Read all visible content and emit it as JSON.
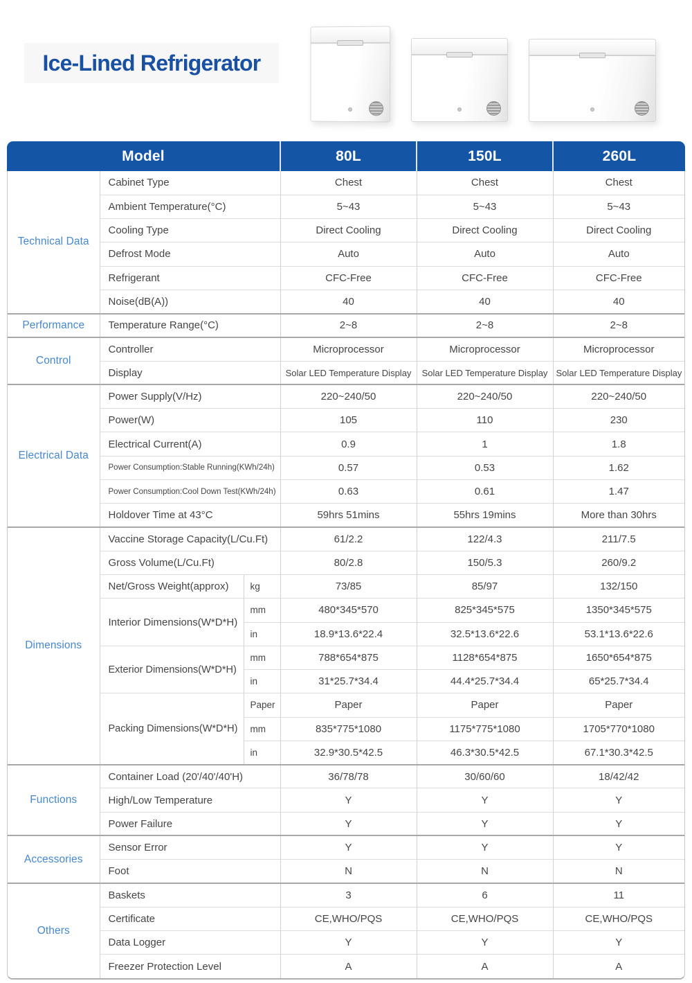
{
  "header": {
    "title": "Ice-Lined Refrigerator"
  },
  "products": [
    {
      "name": "chest-freezer-80l"
    },
    {
      "name": "chest-freezer-150l"
    },
    {
      "name": "chest-freezer-260l"
    }
  ],
  "table": {
    "model_label": "Model",
    "columns": [
      "80L",
      "150L",
      "260L"
    ],
    "groups": [
      {
        "category": "Technical Data",
        "rows": [
          {
            "label": "Cabinet Type",
            "values": [
              "Chest",
              "Chest",
              "Chest"
            ]
          },
          {
            "label": "Ambient Temperature(°C)",
            "values": [
              "5~43",
              "5~43",
              "5~43"
            ]
          },
          {
            "label": "Cooling Type",
            "values": [
              "Direct Cooling",
              "Direct Cooling",
              "Direct Cooling"
            ]
          },
          {
            "label": "Defrost Mode",
            "values": [
              "Auto",
              "Auto",
              "Auto"
            ]
          },
          {
            "label": "Refrigerant",
            "values": [
              "CFC-Free",
              "CFC-Free",
              "CFC-Free"
            ]
          },
          {
            "label": "Noise(dB(A))",
            "values": [
              "40",
              "40",
              "40"
            ]
          }
        ]
      },
      {
        "category": "Performance",
        "rows": [
          {
            "label": "Temperature Range(°C)",
            "values": [
              "2~8",
              "2~8",
              "2~8"
            ]
          }
        ]
      },
      {
        "category": "Control",
        "rows": [
          {
            "label": "Controller",
            "values": [
              "Microprocessor",
              "Microprocessor",
              "Microprocessor"
            ]
          },
          {
            "label": "Display",
            "values": [
              "Solar LED Temperature Display",
              "Solar LED Temperature Display",
              "Solar LED Temperature Display"
            ]
          }
        ]
      },
      {
        "category": "Electrical Data",
        "rows": [
          {
            "label": "Power Supply(V/Hz)",
            "values": [
              "220~240/50",
              "220~240/50",
              "220~240/50"
            ]
          },
          {
            "label": "Power(W)",
            "values": [
              "105",
              "110",
              "230"
            ]
          },
          {
            "label": "Electrical Current(A)",
            "values": [
              "0.9",
              "1",
              "1.8"
            ]
          },
          {
            "label": "Power Consumption:Stable Running(KWh/24h)",
            "values": [
              "0.57",
              "0.53",
              "1.62"
            ]
          },
          {
            "label": "Power Consumption:Cool Down Test(KWh/24h)",
            "values": [
              "0.63",
              "0.61",
              "1.47"
            ]
          },
          {
            "label": "Holdover Time at 43°C",
            "values": [
              "59hrs 51mins",
              "55hrs 19mins",
              "More than 30hrs"
            ]
          }
        ]
      },
      {
        "category": "Dimensions",
        "rows": [
          {
            "label": "Vaccine Storage Capacity(L/Cu.Ft)",
            "values": [
              "61/2.2",
              "122/4.3",
              "211/7.5"
            ]
          },
          {
            "label": "Gross Volume(L/Cu.Ft)",
            "values": [
              "80/2.8",
              "150/5.3",
              "260/9.2"
            ]
          },
          {
            "label": "Net/Gross Weight(approx)",
            "unit": "kg",
            "values": [
              "73/85",
              "85/97",
              "132/150"
            ]
          },
          {
            "label": "Interior Dimensions(W*D*H)",
            "subrows": [
              {
                "unit": "mm",
                "values": [
                  "480*345*570",
                  "825*345*575",
                  "1350*345*575"
                ]
              },
              {
                "unit": "in",
                "values": [
                  "18.9*13.6*22.4",
                  "32.5*13.6*22.6",
                  "53.1*13.6*22.6"
                ]
              }
            ]
          },
          {
            "label": "Exterior Dimensions(W*D*H)",
            "subrows": [
              {
                "unit": "mm",
                "values": [
                  "788*654*875",
                  "1128*654*875",
                  "1650*654*875"
                ]
              },
              {
                "unit": "in",
                "values": [
                  "31*25.7*34.4",
                  "44.4*25.7*34.4",
                  "65*25.7*34.4"
                ]
              }
            ]
          },
          {
            "label": "Packing Dimensions(W*D*H)",
            "subrows": [
              {
                "unit": "Paper",
                "values": [
                  "Paper",
                  "Paper",
                  "Paper"
                ]
              },
              {
                "unit": "mm",
                "values": [
                  "835*775*1080",
                  "1175*775*1080",
                  "1705*770*1080"
                ]
              },
              {
                "unit": "in",
                "values": [
                  "32.9*30.5*42.5",
                  "46.3*30.5*42.5",
                  "67.1*30.3*42.5"
                ]
              }
            ]
          }
        ]
      },
      {
        "category": "Functions",
        "rows": [
          {
            "label": "Container Load (20'/40'/40'H)",
            "values": [
              "36/78/78",
              "30/60/60",
              "18/42/42"
            ]
          },
          {
            "label": "High/Low Temperature",
            "values": [
              "Y",
              "Y",
              "Y"
            ]
          },
          {
            "label": "Power Failure",
            "values": [
              "Y",
              "Y",
              "Y"
            ]
          }
        ]
      },
      {
        "category": "Accessories",
        "rows": [
          {
            "label": "Sensor Error",
            "values": [
              "Y",
              "Y",
              "Y"
            ]
          },
          {
            "label": "Foot",
            "values": [
              "N",
              "N",
              "N"
            ]
          }
        ]
      },
      {
        "category": "Others",
        "rows": [
          {
            "label": "Baskets",
            "values": [
              "3",
              "6",
              "11"
            ]
          },
          {
            "label": "Certificate",
            "values": [
              "CE,WHO/PQS",
              "CE,WHO/PQS",
              "CE,WHO/PQS"
            ]
          },
          {
            "label": "Data Logger",
            "values": [
              "Y",
              "Y",
              "Y"
            ]
          },
          {
            "label": "Freezer Protection Level",
            "values": [
              "A",
              "A",
              "A"
            ]
          }
        ]
      }
    ]
  },
  "colors": {
    "header_bg": "#1455A5",
    "title_text": "#1A50A2",
    "category_text": "#4787CD",
    "body_text": "#454545"
  }
}
